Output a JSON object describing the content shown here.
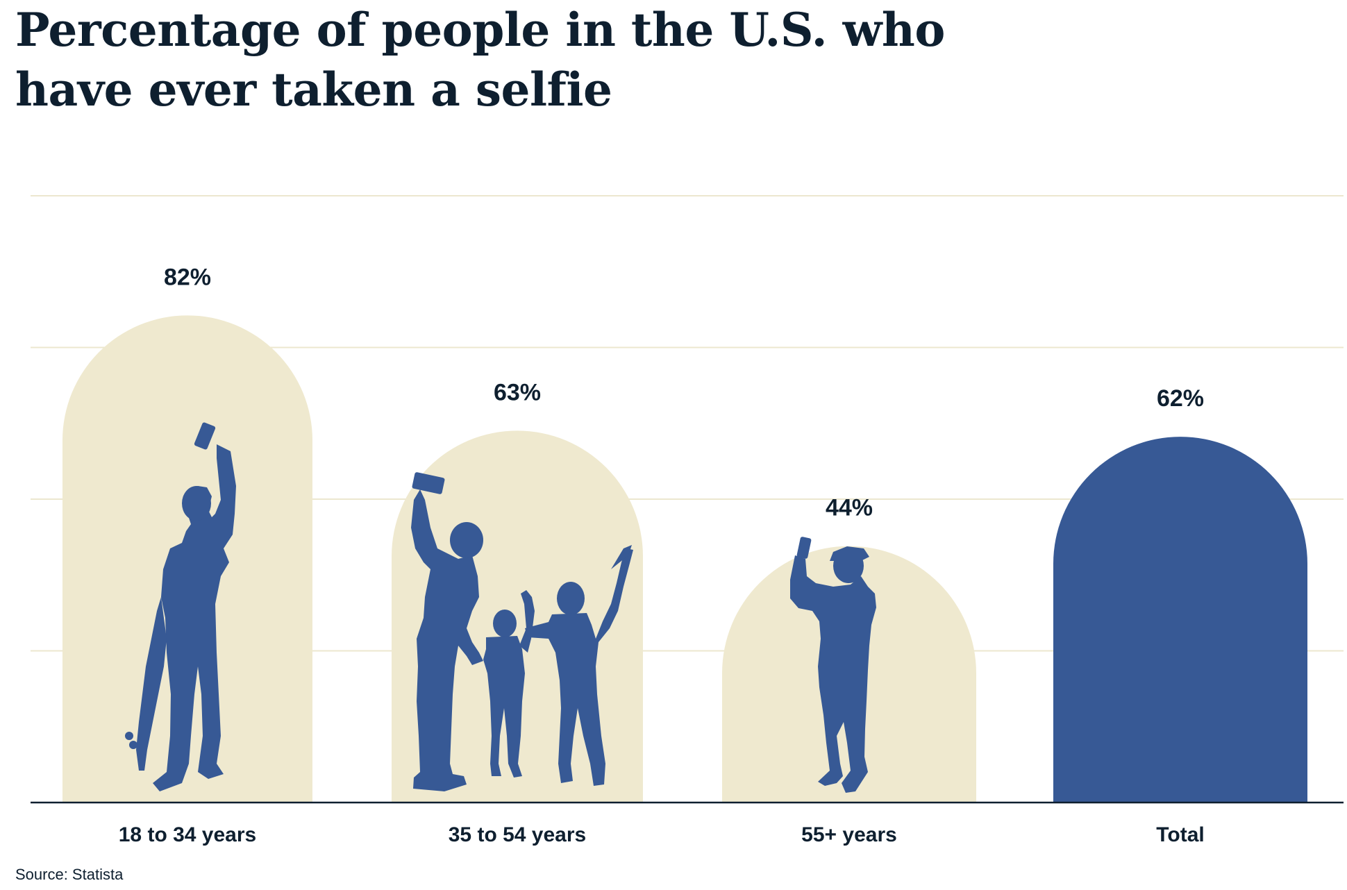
{
  "chart_data": {
    "type": "bar",
    "title": "Percentage of people in the U.S. who have ever taken a selfie",
    "categories": [
      "18 to 34 years",
      "35 to 54 years",
      "55+ years",
      "Total"
    ],
    "values": [
      82,
      63,
      44,
      62
    ],
    "value_labels": [
      "82%",
      "63%",
      "44%",
      "62%"
    ],
    "unit": "%",
    "ylim": [
      0,
      100
    ],
    "grid": true,
    "source": "Source: Statista"
  },
  "colors": {
    "bar": "#efe9cf",
    "highlight": "#375995",
    "grid": "#ece7cf",
    "axis": "#0e1f2f",
    "text": "#0e1f2f"
  },
  "highlight_category": "Total",
  "icons": [
    "selfie-person-with-skateboard-icon",
    "selfie-family-icon",
    "selfie-older-man-icon"
  ]
}
